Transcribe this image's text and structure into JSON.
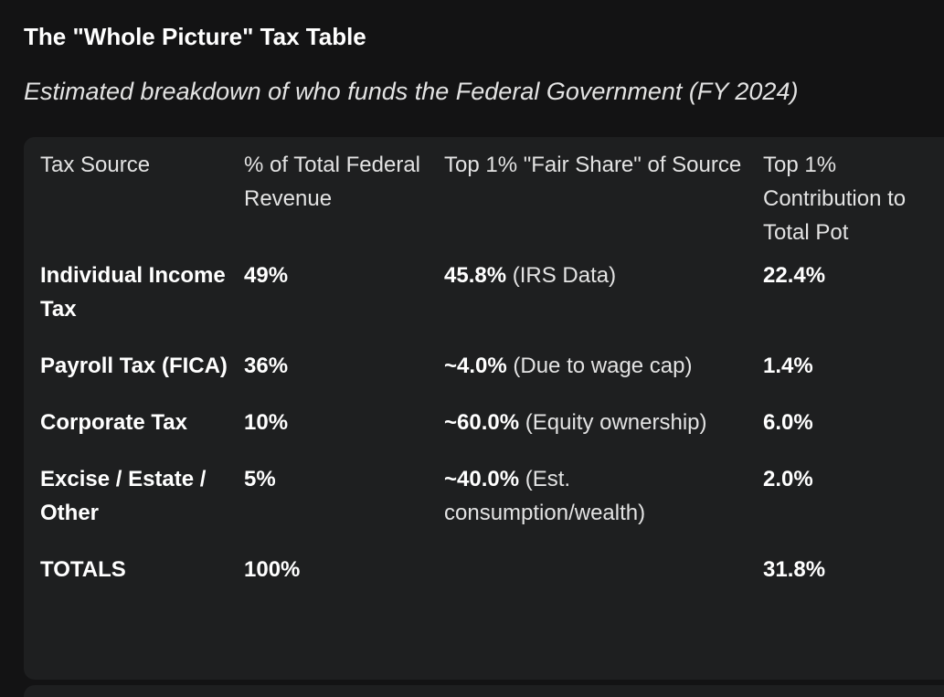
{
  "title": "The \"Whole Picture\" Tax Table",
  "subtitle": "Estimated breakdown of who funds the Federal Government (FY 2024)",
  "table": {
    "headers": [
      "Tax Source",
      "% of Total Federal Revenue",
      "Top 1% \"Fair Share\" of Source",
      "Top 1% Contribution to Total Pot"
    ],
    "rows": [
      {
        "source": "Individual Income Tax",
        "pct_revenue": "49%",
        "share_bold": "45.8%",
        "share_note": " (IRS Data)",
        "contribution": "22.4%"
      },
      {
        "source": "Payroll Tax (FICA)",
        "pct_revenue": "36%",
        "share_bold": "~4.0%",
        "share_note": " (Due to wage cap)",
        "contribution": "1.4%"
      },
      {
        "source": "Corporate Tax",
        "pct_revenue": "10%",
        "share_bold": "~60.0%",
        "share_note": " (Equity ownership)",
        "contribution": "6.0%"
      },
      {
        "source": "Excise / Estate / Other",
        "pct_revenue": "5%",
        "share_bold": "~40.0%",
        "share_note": " (Est. consumption/wealth)",
        "contribution": "2.0%"
      }
    ],
    "totals": {
      "label": "TOTALS",
      "pct_revenue": "100%",
      "share": "",
      "contribution": "31.8%"
    }
  }
}
